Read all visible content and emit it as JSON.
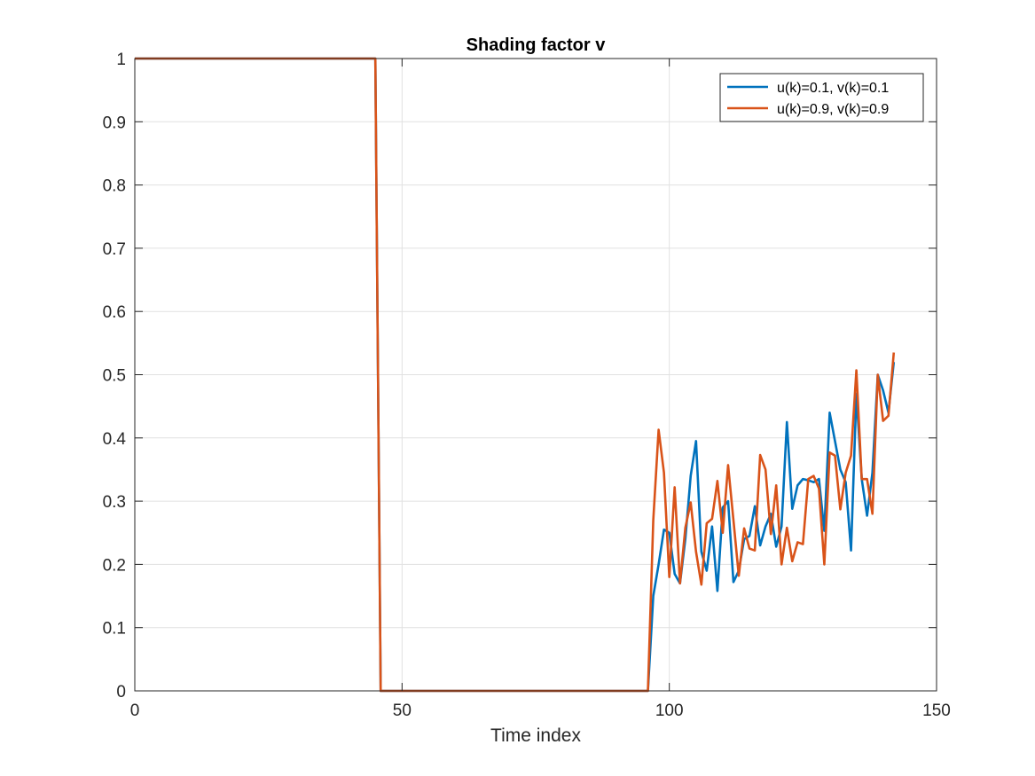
{
  "chart_data": {
    "type": "line",
    "title": "Shading factor v",
    "xlabel": "Time index",
    "ylabel": "",
    "xlim": [
      0,
      150
    ],
    "ylim": [
      0,
      1
    ],
    "xticks": [
      0,
      50,
      100,
      150
    ],
    "yticks": [
      0,
      0.1,
      0.2,
      0.3,
      0.4,
      0.5,
      0.6,
      0.7,
      0.8,
      0.9,
      1
    ],
    "xtick_labels": [
      "0",
      "50",
      "100",
      "150"
    ],
    "ytick_labels": [
      "0",
      "0.1",
      "0.2",
      "0.3",
      "0.4",
      "0.5",
      "0.6",
      "0.7",
      "0.8",
      "0.9",
      "1"
    ],
    "grid": true,
    "legend_position": "top-right",
    "series": [
      {
        "name": "u(k)=0.1, v(k)=0.1",
        "color": "#0072BD",
        "x": [
          0,
          45,
          46,
          96,
          97,
          98,
          99,
          100,
          101,
          102,
          103,
          104,
          105,
          106,
          107,
          108,
          109,
          110,
          111,
          112,
          113,
          114,
          115,
          116,
          117,
          118,
          119,
          120,
          121,
          122,
          123,
          124,
          125,
          126,
          127,
          128,
          129,
          130,
          131,
          132,
          133,
          134,
          135,
          136,
          137,
          138,
          139,
          140,
          141,
          142
        ],
        "y": [
          1,
          1,
          0,
          0,
          0.15,
          0.2,
          0.255,
          0.25,
          0.185,
          0.17,
          0.24,
          0.34,
          0.395,
          0.22,
          0.19,
          0.26,
          0.158,
          0.29,
          0.3,
          0.172,
          0.19,
          0.24,
          0.245,
          0.292,
          0.23,
          0.26,
          0.28,
          0.228,
          0.26,
          0.425,
          0.288,
          0.325,
          0.335,
          0.333,
          0.33,
          0.335,
          0.253,
          0.44,
          0.395,
          0.35,
          0.33,
          0.222,
          0.47,
          0.335,
          0.277,
          0.345,
          0.5,
          0.475,
          0.44,
          0.52
        ]
      },
      {
        "name": "u(k)=0.9, v(k)=0.9",
        "color": "#D95319",
        "x": [
          0,
          45,
          46,
          96,
          97,
          98,
          99,
          100,
          101,
          102,
          103,
          104,
          105,
          106,
          107,
          108,
          109,
          110,
          111,
          112,
          113,
          114,
          115,
          116,
          117,
          118,
          119,
          120,
          121,
          122,
          123,
          124,
          125,
          126,
          127,
          128,
          129,
          130,
          131,
          132,
          133,
          134,
          135,
          136,
          137,
          138,
          139,
          140,
          141,
          142
        ],
        "y": [
          1,
          1,
          0,
          0,
          0.27,
          0.413,
          0.345,
          0.18,
          0.322,
          0.17,
          0.258,
          0.298,
          0.22,
          0.168,
          0.265,
          0.272,
          0.332,
          0.25,
          0.357,
          0.27,
          0.182,
          0.257,
          0.225,
          0.222,
          0.373,
          0.35,
          0.248,
          0.325,
          0.2,
          0.258,
          0.205,
          0.235,
          0.232,
          0.335,
          0.34,
          0.32,
          0.2,
          0.377,
          0.372,
          0.287,
          0.345,
          0.372,
          0.507,
          0.335,
          0.335,
          0.28,
          0.5,
          0.427,
          0.435,
          0.535
        ]
      }
    ]
  }
}
